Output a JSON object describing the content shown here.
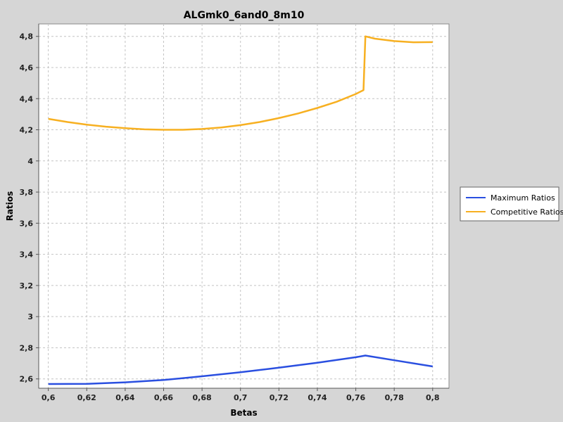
{
  "chart_data": {
    "type": "line",
    "title": "ALGmk0_6and0_8m10",
    "xlabel": "Betas",
    "ylabel": "Ratios",
    "xlim": [
      0.595,
      0.8085
    ],
    "ylim": [
      2.54,
      4.88
    ],
    "xticks": [
      0.6,
      0.62,
      0.64,
      0.66,
      0.68,
      0.7,
      0.72,
      0.74,
      0.76,
      0.78,
      0.8
    ],
    "xtick_labels": [
      "0,6",
      "0,62",
      "0,64",
      "0,66",
      "0,68",
      "0,7",
      "0,72",
      "0,74",
      "0,76",
      "0,78",
      "0,8"
    ],
    "yticks": [
      2.6,
      2.8,
      3.0,
      3.2,
      3.4,
      3.6,
      3.8,
      4.0,
      4.2,
      4.4,
      4.6,
      4.8
    ],
    "ytick_labels": [
      "2,6",
      "2,8",
      "3",
      "3,2",
      "3,4",
      "3,6",
      "3,8",
      "4",
      "4,2",
      "4,4",
      "4,6",
      "4,8"
    ],
    "grid": true,
    "legend_position": "right",
    "series": [
      {
        "name": "Maximum Ratios",
        "color": "#2a4fe0",
        "x": [
          0.6,
          0.62,
          0.64,
          0.66,
          0.68,
          0.7,
          0.72,
          0.74,
          0.76,
          0.765,
          0.78,
          0.8
        ],
        "y": [
          2.567,
          2.568,
          2.578,
          2.593,
          2.617,
          2.643,
          2.672,
          2.704,
          2.739,
          2.75,
          2.72,
          2.68
        ]
      },
      {
        "name": "Competitive Ratios",
        "color": "#f7b021",
        "x": [
          0.6,
          0.61,
          0.62,
          0.63,
          0.64,
          0.65,
          0.66,
          0.67,
          0.68,
          0.69,
          0.7,
          0.71,
          0.72,
          0.73,
          0.74,
          0.75,
          0.76,
          0.764,
          0.765,
          0.77,
          0.78,
          0.79,
          0.8
        ],
        "y": [
          4.27,
          4.25,
          4.233,
          4.22,
          4.21,
          4.203,
          4.2,
          4.2,
          4.205,
          4.215,
          4.23,
          4.25,
          4.275,
          4.305,
          4.34,
          4.38,
          4.43,
          4.455,
          4.8,
          4.785,
          4.77,
          4.762,
          4.763
        ]
      }
    ]
  }
}
